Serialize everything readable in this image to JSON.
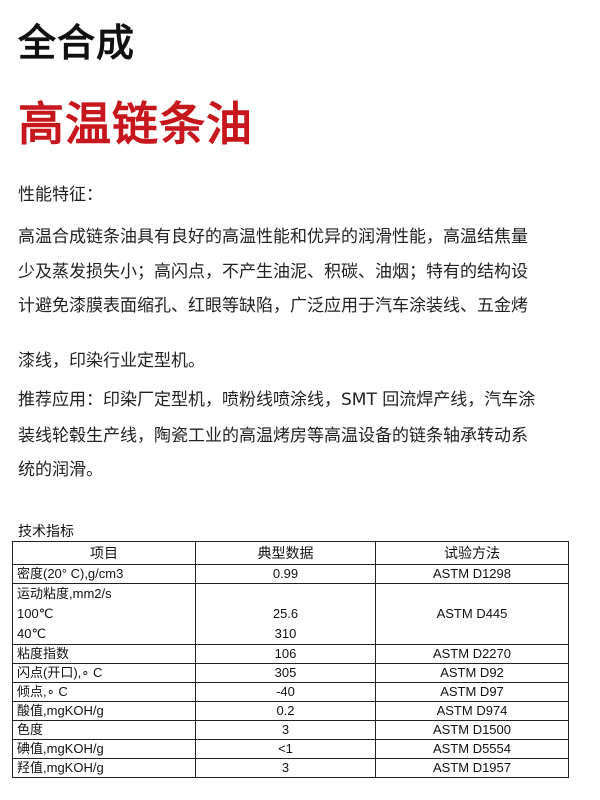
{
  "title": "全合成",
  "product": "高温链条油",
  "features_heading": "性能特征：",
  "lines": [
    "高温合成链条油具有良好的高温性能和优异的润滑性能，高温结焦量",
    "少及蒸发损失小；高闪点，不产生油泥、积碳、油烟；特有的结构设",
    "计避免漆膜表面缩孔、红眼等缺陷，广泛应用于汽车涂装线、五金烤",
    "漆线，印染行业定型机。",
    "推荐应用：印染厂定型机，喷粉线喷涂线，SMT 回流焊产线，汽车涂",
    "装线轮毂生产线，陶瓷工业的高温烤房等高温设备的链条轴承转动系",
    "统的润滑。"
  ],
  "table": {
    "caption": "技术指标",
    "headers": [
      "项目",
      "典型数据",
      "试验方法"
    ],
    "visc": {
      "label": "运动粘度,mm2/s",
      "t100": "100℃",
      "t40": "40℃",
      "v100": "25.6",
      "v40": "310",
      "method": "ASTM D445"
    },
    "rows": [
      [
        "密度(20° C),g/cm3",
        "0.99",
        "ASTM D1298"
      ],
      [
        "粘度指数",
        "106",
        "ASTM D2270"
      ],
      [
        "闪点(开口),∘ C",
        "305",
        "ASTM D92"
      ],
      [
        "倾点,∘ C",
        "-40",
        "ASTM D97"
      ],
      [
        "酸值,mgKOH/g",
        "0.2",
        "ASTM D974"
      ],
      [
        "色度",
        "3",
        "ASTM D1500"
      ],
      [
        "碘值,mgKOH/g",
        "<1",
        "ASTM D5554"
      ],
      [
        "羟值,mgKOH/g",
        "3",
        "ASTM D1957"
      ]
    ]
  }
}
